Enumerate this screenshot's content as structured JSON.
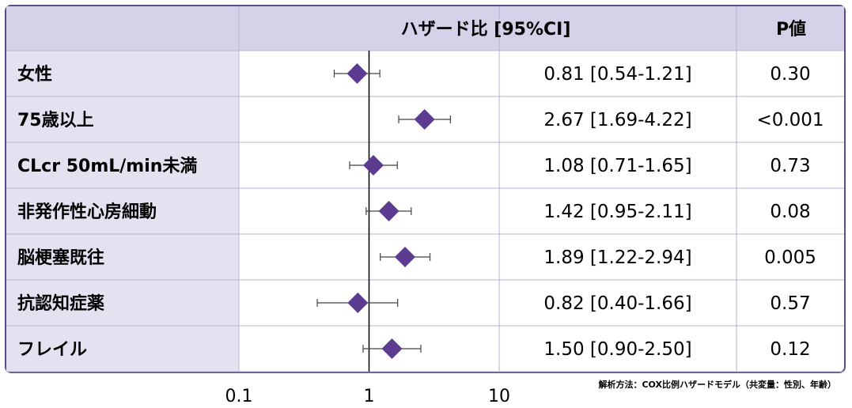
{
  "header": {
    "hr_label": "ハザード比 [95%CI]",
    "p_label": "P値"
  },
  "rows": [
    {
      "label": "女性",
      "hr_text": "0.81 [0.54-1.21]",
      "p_text": "0.30"
    },
    {
      "label": "75歳以上",
      "hr_text": "2.67 [1.69-4.22]",
      "p_text": "<0.001"
    },
    {
      "label": "CLcr 50mL/min未満",
      "hr_text": "1.08 [0.71-1.65]",
      "p_text": "0.73"
    },
    {
      "label": "非発作性心房細動",
      "hr_text": "1.42 [0.95-2.11]",
      "p_text": "0.08"
    },
    {
      "label": "脳梗塞既往",
      "hr_text": "1.89 [1.22-2.94]",
      "p_text": "0.005"
    },
    {
      "label": "抗認知症薬",
      "hr_text": "0.82 [0.40-1.66]",
      "p_text": "0.57"
    },
    {
      "label": "フレイル",
      "hr_text": "1.50 [0.90-2.50]",
      "p_text": "0.12"
    }
  ],
  "footnote": "解析方法：COX比例ハザードモデル（共変量：性別、年齢）",
  "colors": {
    "header_bg": "#d6d0e8",
    "label_bg": "#e6e1f1",
    "border": "#5b4b8f",
    "marker": "#5b3c91",
    "ci_line": "#444444"
  },
  "chart_data": {
    "type": "forest",
    "xscale": "log",
    "xlim": [
      0.1,
      10
    ],
    "x_ticks": [
      "0.1",
      "1",
      "10"
    ],
    "reference_line": 1,
    "categories": [
      "女性",
      "75歳以上",
      "CLcr 50mL/min未満",
      "非発作性心房細動",
      "脳梗塞既往",
      "抗認知症薬",
      "フレイル"
    ],
    "hr": [
      0.81,
      2.67,
      1.08,
      1.42,
      1.89,
      0.82,
      1.5
    ],
    "ci_lower": [
      0.54,
      1.69,
      0.71,
      0.95,
      1.22,
      0.4,
      0.9
    ],
    "ci_upper": [
      1.21,
      4.22,
      1.65,
      2.11,
      2.94,
      1.66,
      2.5
    ],
    "p_values": [
      "0.30",
      "<0.001",
      "0.73",
      "0.08",
      "0.005",
      "0.57",
      "0.12"
    ]
  }
}
